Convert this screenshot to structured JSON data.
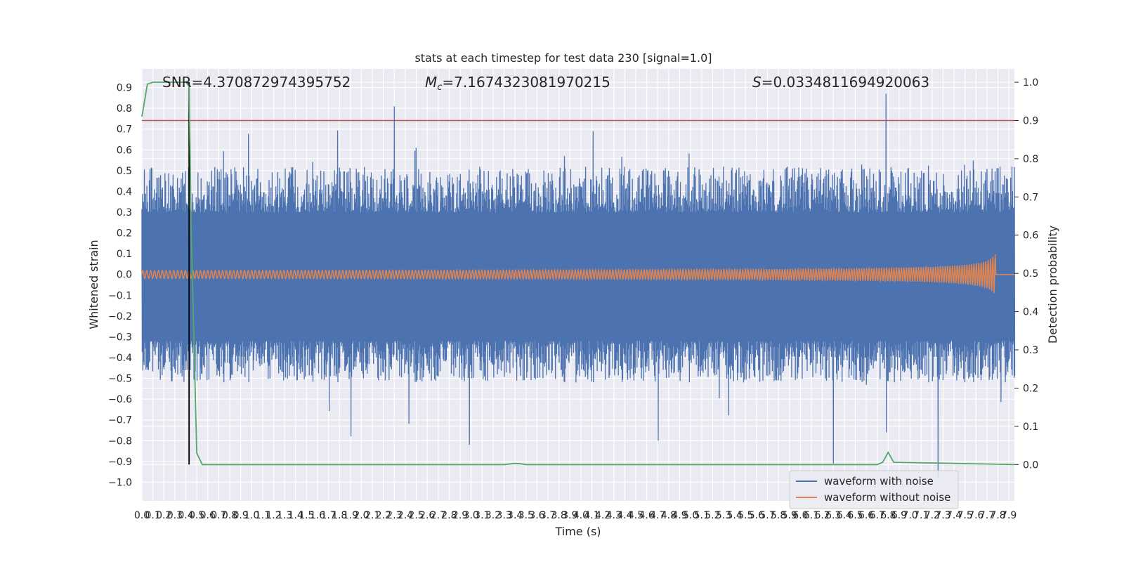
{
  "chart_data": {
    "type": "line",
    "title": "stats at each timestep for test data 230 [signal=1.0]",
    "xlabel": "Time (s)",
    "ylabel_left": "Whitened strain",
    "ylabel_right": "Detection probability",
    "xlim": [
      0.0,
      7.95
    ],
    "ylim_left": [
      -1.09,
      0.99
    ],
    "ylim_right": [
      -0.095,
      1.035
    ],
    "grid": true,
    "annotations": {
      "snr": "SNR=4.370872974395752",
      "mc_symbol": "M",
      "mc_sub": "c",
      "mc_value": "=7.1674323081970215",
      "s_symbol": "S",
      "s_value": "=0.0334811694920063"
    },
    "x_ticks": [
      "0.0",
      "0.1",
      "0.2",
      "0.3",
      "0.4",
      "0.5",
      "0.6",
      "0.7",
      "0.8",
      "0.9",
      "1.0",
      "1.1",
      "1.2",
      "1.3",
      "1.4",
      "1.5",
      "1.6",
      "1.7",
      "1.8",
      "1.9",
      "2.0",
      "2.1",
      "2.2",
      "2.3",
      "2.4",
      "2.5",
      "2.6",
      "2.7",
      "2.8",
      "2.9",
      "3.0",
      "3.1",
      "3.2",
      "3.3",
      "3.4",
      "3.5",
      "3.6",
      "3.7",
      "3.8",
      "3.9",
      "4.0",
      "4.1",
      "4.2",
      "4.3",
      "4.4",
      "4.5",
      "4.6",
      "4.7",
      "4.8",
      "4.9",
      "5.0",
      "5.1",
      "5.2",
      "5.3",
      "5.4",
      "5.5",
      "5.6",
      "5.7",
      "5.8",
      "5.9",
      "6.0",
      "6.1",
      "6.2",
      "6.3",
      "6.4",
      "6.5",
      "6.6",
      "6.7",
      "6.8",
      "6.9",
      "7.0",
      "7.1",
      "7.2",
      "7.3",
      "7.4",
      "7.5",
      "7.6",
      "7.7",
      "7.8",
      "7.9"
    ],
    "y_ticks_left": [
      "0.9",
      "0.8",
      "0.7",
      "0.6",
      "0.5",
      "0.4",
      "0.3",
      "0.2",
      "0.1",
      "0.0",
      "−0.1",
      "−0.2",
      "−0.3",
      "−0.4",
      "−0.5",
      "−0.6",
      "−0.7",
      "−0.8",
      "−0.9",
      "−1.0"
    ],
    "y_ticks_right": [
      "1.0",
      "0.9",
      "0.8",
      "0.7",
      "0.6",
      "0.5",
      "0.4",
      "0.3",
      "0.2",
      "0.1",
      "0.0"
    ],
    "series": [
      {
        "name": "waveform with noise",
        "color": "#4c72b0",
        "axis": "left",
        "description": "whitened strain with noise, amplitude roughly ±0.5, peaks to ~0.87 and ~-1.0"
      },
      {
        "name": "waveform without noise",
        "color": "#dd8452",
        "axis": "left",
        "description": "chirp signal, amplitude growing to ~0.1 near 7.75 s then zero"
      },
      {
        "name": "detection probability",
        "color": "#55a868",
        "axis": "right",
        "x": [
          0.0,
          0.05,
          0.1,
          0.15,
          0.2,
          0.3,
          0.4,
          0.43,
          0.45,
          0.5,
          0.55,
          0.6,
          3.3,
          3.4,
          3.45,
          3.5,
          6.7,
          6.75,
          6.8,
          6.85,
          7.95
        ],
        "y": [
          0.91,
          0.995,
          1.0,
          1.0,
          1.0,
          1.0,
          1.0,
          0.99,
          0.6,
          0.03,
          0.0,
          0.0,
          0.0,
          0.003,
          0.002,
          0.0,
          0.0,
          0.006,
          0.032,
          0.006,
          0.0
        ]
      }
    ],
    "threshold_line": {
      "value": 0.9,
      "axis": "right",
      "color": "#c44e52"
    },
    "marker_line": {
      "x": 0.43,
      "color": "#000000"
    },
    "legend": {
      "placement": "bottom-right",
      "items": [
        "waveform with noise",
        "waveform without noise"
      ]
    }
  }
}
